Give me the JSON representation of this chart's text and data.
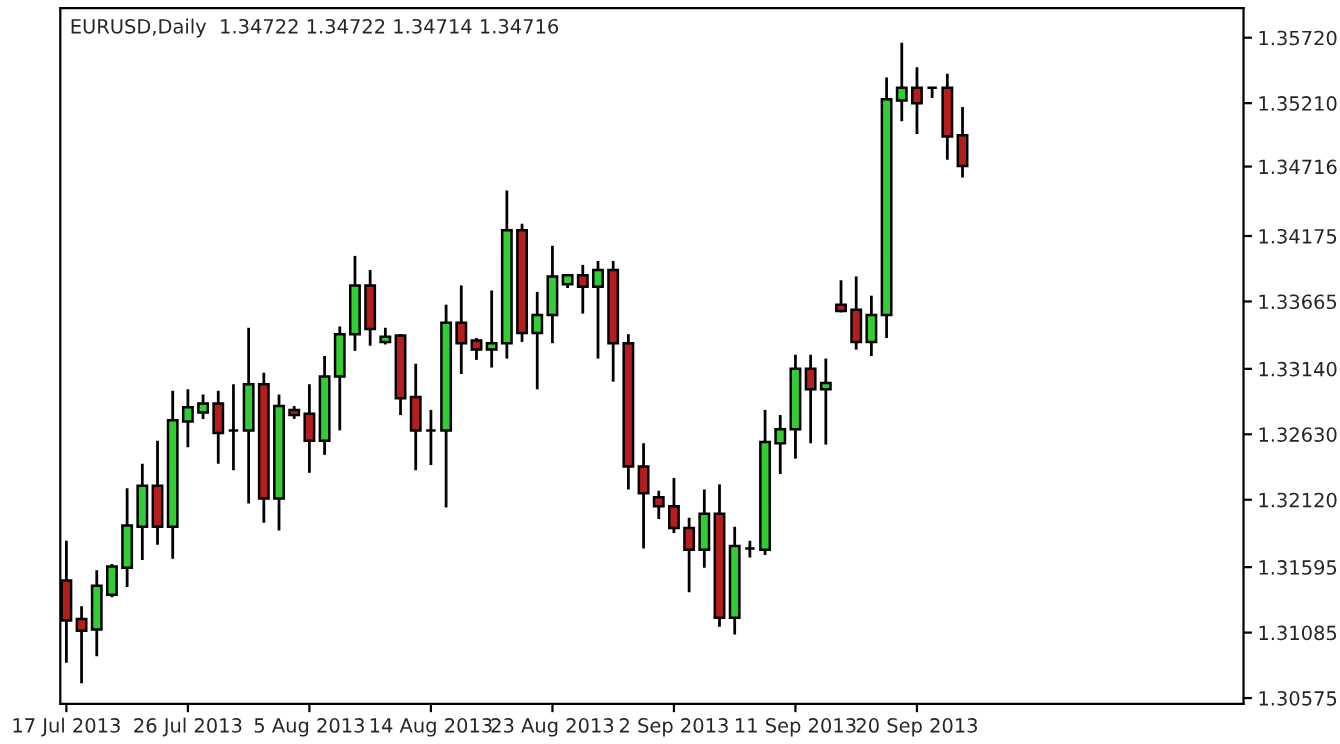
{
  "chart_data": {
    "type": "candlestick",
    "title": "EURUSD,Daily  1.34722 1.34722 1.34714 1.34716",
    "categories": [
      "17 Jul 2013",
      null,
      null,
      null,
      null,
      null,
      null,
      null,
      "26 Jul 2013",
      null,
      null,
      null,
      null,
      null,
      null,
      null,
      "5 Aug 2013",
      null,
      null,
      null,
      null,
      null,
      null,
      null,
      "14 Aug 2013",
      null,
      null,
      null,
      null,
      null,
      null,
      null,
      "23 Aug 2013",
      null,
      null,
      null,
      null,
      null,
      null,
      null,
      "2 Sep 2013",
      null,
      null,
      null,
      null,
      null,
      null,
      null,
      "11 Sep 2013",
      null,
      null,
      null,
      null,
      null,
      null,
      null,
      "20 Sep 2013",
      null,
      null,
      null,
      null,
      null,
      null,
      null,
      null,
      null,
      null,
      null,
      null,
      null,
      null,
      null,
      null,
      null,
      null,
      null,
      null,
      null
    ],
    "ohlc": [
      [
        1.3149,
        1.318,
        1.3085,
        1.3118
      ],
      [
        1.3119,
        1.3129,
        1.3069,
        1.311
      ],
      [
        1.3111,
        1.3157,
        1.309,
        1.3145
      ],
      [
        1.3138,
        1.3162,
        1.3136,
        1.316
      ],
      [
        1.3159,
        1.3221,
        1.3144,
        1.3192
      ],
      [
        1.3191,
        1.324,
        1.3165,
        1.3223
      ],
      [
        1.3223,
        1.3258,
        1.3177,
        1.3191
      ],
      [
        1.3191,
        1.3297,
        1.3166,
        1.3274
      ],
      [
        1.3273,
        1.3298,
        1.3253,
        1.3284
      ],
      [
        1.328,
        1.3294,
        1.3275,
        1.3287
      ],
      [
        1.3287,
        1.3297,
        1.324,
        1.3264
      ],
      [
        1.3266,
        1.3302,
        1.3235,
        1.3266
      ],
      [
        1.3266,
        1.3346,
        1.3209,
        1.3302
      ],
      [
        1.3302,
        1.3311,
        1.3194,
        1.3213
      ],
      [
        1.3213,
        1.3294,
        1.3188,
        1.3285
      ],
      [
        1.3282,
        1.3285,
        1.3275,
        1.3278
      ],
      [
        1.3279,
        1.3302,
        1.3233,
        1.3258
      ],
      [
        1.3258,
        1.3324,
        1.3247,
        1.3308
      ],
      [
        1.3308,
        1.3347,
        1.3266,
        1.3341
      ],
      [
        1.3341,
        1.3402,
        1.3328,
        1.3379
      ],
      [
        1.3379,
        1.3391,
        1.3332,
        1.3345
      ],
      [
        1.3335,
        1.3346,
        1.3333,
        1.3339
      ],
      [
        1.334,
        1.3341,
        1.3278,
        1.3291
      ],
      [
        1.3292,
        1.3318,
        1.3235,
        1.3266
      ],
      [
        1.3266,
        1.3282,
        1.3239,
        1.3266
      ],
      [
        1.3266,
        1.3364,
        1.3206,
        1.335
      ],
      [
        1.335,
        1.3379,
        1.331,
        1.3334
      ],
      [
        1.3336,
        1.3338,
        1.3321,
        1.3329
      ],
      [
        1.3329,
        1.3375,
        1.3315,
        1.3334
      ],
      [
        1.3334,
        1.3453,
        1.3322,
        1.3422
      ],
      [
        1.3422,
        1.3427,
        1.3335,
        1.3342
      ],
      [
        1.3342,
        1.3374,
        1.3298,
        1.3356
      ],
      [
        1.3356,
        1.341,
        1.3334,
        1.3386
      ],
      [
        1.338,
        1.3387,
        1.3377,
        1.3387
      ],
      [
        1.3387,
        1.3395,
        1.3357,
        1.3378
      ],
      [
        1.3378,
        1.3398,
        1.3322,
        1.3391
      ],
      [
        1.3391,
        1.3398,
        1.3304,
        1.3334
      ],
      [
        1.3334,
        1.3341,
        1.322,
        1.3238
      ],
      [
        1.3238,
        1.3256,
        1.3174,
        1.3217
      ],
      [
        1.3214,
        1.3219,
        1.3197,
        1.3207
      ],
      [
        1.3207,
        1.3229,
        1.3186,
        1.319
      ],
      [
        1.319,
        1.3198,
        1.314,
        1.3173
      ],
      [
        1.3173,
        1.322,
        1.3159,
        1.3201
      ],
      [
        1.3201,
        1.3224,
        1.3113,
        1.312
      ],
      [
        1.312,
        1.3191,
        1.3107,
        1.3176
      ],
      [
        1.3174,
        1.318,
        1.3167,
        1.3174
      ],
      [
        1.3173,
        1.3282,
        1.3169,
        1.3257
      ],
      [
        1.3256,
        1.3278,
        1.3232,
        1.3267
      ],
      [
        1.3267,
        1.3325,
        1.3244,
        1.3314
      ],
      [
        1.3314,
        1.3325,
        1.3256,
        1.3298
      ],
      [
        1.3298,
        1.3322,
        1.3255,
        1.3303
      ],
      [
        1.3364,
        1.3383,
        1.3358,
        1.3359
      ],
      [
        1.336,
        1.3386,
        1.3329,
        1.3335
      ],
      [
        1.3335,
        1.3371,
        1.3324,
        1.3356
      ],
      [
        1.3356,
        1.3541,
        1.3338,
        1.3524
      ],
      [
        1.3523,
        1.3568,
        1.3507,
        1.3533
      ],
      [
        1.3533,
        1.3549,
        1.3497,
        1.3521
      ],
      [
        1.3533,
        1.3533,
        1.3525,
        1.3533
      ],
      [
        1.3533,
        1.3544,
        1.3477,
        1.3495
      ],
      [
        1.3496,
        1.3518,
        1.3463,
        1.3472
      ],
      null,
      null,
      null,
      null,
      null,
      null,
      null,
      null,
      null,
      null,
      null,
      null,
      null,
      null,
      null,
      null,
      null,
      null
    ],
    "colors": [
      "#b41e1e",
      "#b41e1e",
      "#32cd32",
      "#32cd32",
      "#32cd32",
      "#32cd32",
      "#b41e1e",
      "#32cd32",
      "#32cd32",
      "#32cd32",
      "#b41e1e",
      "#000000",
      "#32cd32",
      "#b41e1e",
      "#32cd32",
      "#b41e1e",
      "#b41e1e",
      "#32cd32",
      "#32cd32",
      "#32cd32",
      "#b41e1e",
      "#32cd32",
      "#b41e1e",
      "#b41e1e",
      "#000000",
      "#32cd32",
      "#b41e1e",
      "#b41e1e",
      "#32cd32",
      "#32cd32",
      "#b41e1e",
      "#32cd32",
      "#32cd32",
      "#32cd32",
      "#b41e1e",
      "#32cd32",
      "#b41e1e",
      "#b41e1e",
      "#b41e1e",
      "#b41e1e",
      "#b41e1e",
      "#b41e1e",
      "#32cd32",
      "#b41e1e",
      "#32cd32",
      "#000000",
      "#32cd32",
      "#32cd32",
      "#32cd32",
      "#b41e1e",
      "#32cd32",
      "#b41e1e",
      "#b41e1e",
      "#32cd32",
      "#32cd32",
      "#32cd32",
      "#b41e1e",
      "#000000",
      "#b41e1e",
      "#b41e1e",
      null,
      null,
      null,
      null,
      null,
      null,
      null,
      null,
      null,
      null,
      null,
      null,
      null,
      null,
      null,
      null,
      null,
      null
    ],
    "ylim": [
      1.3053,
      1.3595
    ],
    "yticks": [
      {
        "value": 1.3572,
        "label": "1.35720"
      },
      {
        "value": 1.3521,
        "label": "1.35210"
      },
      {
        "value": 1.34716,
        "label": "1.34716"
      },
      {
        "value": 1.34175,
        "label": "1.34175"
      },
      {
        "value": 1.33665,
        "label": "1.33665"
      },
      {
        "value": 1.3314,
        "label": "1.33140"
      },
      {
        "value": 1.3263,
        "label": "1.32630"
      },
      {
        "value": 1.3212,
        "label": "1.32120"
      },
      {
        "value": 1.31595,
        "label": "1.31595"
      },
      {
        "value": 1.31085,
        "label": "1.31085"
      },
      {
        "value": 1.30575,
        "label": "1.30575"
      }
    ],
    "grid": false
  }
}
